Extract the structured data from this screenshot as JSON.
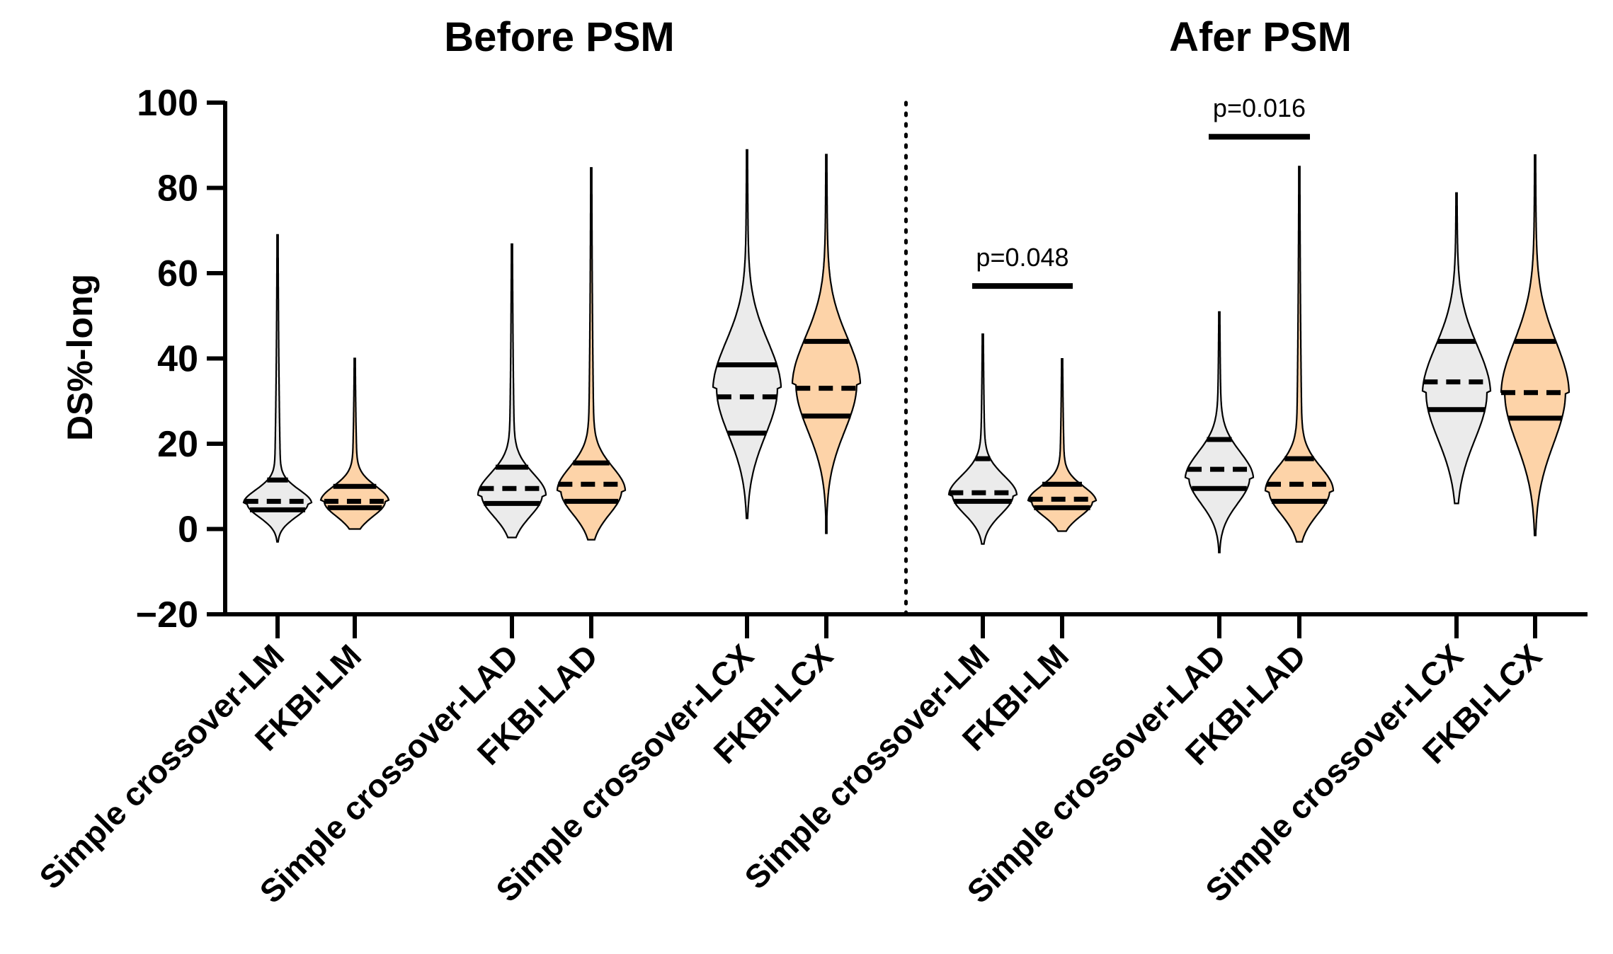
{
  "chart_data": {
    "type": "violin",
    "panels": [
      "Before PSM",
      "Afer PSM"
    ],
    "ylabel": "DS%-long",
    "ylim": [
      -20,
      100
    ],
    "yticks": [
      "100",
      "80",
      "60",
      "40",
      "20",
      "0",
      "−20"
    ],
    "yticks_values": [
      100,
      80,
      60,
      40,
      20,
      0,
      -20
    ],
    "categories": [
      "Simple crossover-LM",
      "FKBI-LM",
      "Simple crossover-LAD",
      "FKBI-LAD",
      "Simple crossover-LCX",
      "FKBI-LCX",
      "Simple crossover-LM",
      "FKBI-LM",
      "Simple crossover-LAD",
      "FKBI-LAD",
      "Simple crossover-LCX",
      "FKBI-LCX"
    ],
    "series": [
      {
        "name": "Simple crossover-LM",
        "panel": "Before PSM",
        "group": "Simple crossover",
        "min": -3,
        "max": 69,
        "q1": 4.5,
        "median": 6.5,
        "q3": 11.5,
        "mode": 6,
        "spread": 3.2
      },
      {
        "name": "FKBI-LM",
        "panel": "Before PSM",
        "group": "FKBI",
        "min": 0,
        "max": 40,
        "q1": 5,
        "median": 6.5,
        "q3": 10,
        "mode": 6.5,
        "spread": 3.5
      },
      {
        "name": "Simple crossover-LAD",
        "panel": "Before PSM",
        "group": "Simple crossover",
        "min": -2,
        "max": 67,
        "q1": 6,
        "median": 9.5,
        "q3": 14.5,
        "mode": 8,
        "spread": 5
      },
      {
        "name": "FKBI-LAD",
        "panel": "Before PSM",
        "group": "FKBI",
        "min": -2.5,
        "max": 85,
        "q1": 6.5,
        "median": 10.5,
        "q3": 15.5,
        "mode": 9,
        "spread": 5.5
      },
      {
        "name": "Simple crossover-LCX",
        "panel": "Before PSM",
        "group": "Simple crossover",
        "min": 2.5,
        "max": 89,
        "q1": 22.5,
        "median": 31,
        "q3": 38.5,
        "mode": 33,
        "spread": 11
      },
      {
        "name": "FKBI-LCX",
        "panel": "Before PSM",
        "group": "FKBI",
        "min": -1,
        "max": 88,
        "q1": 26.5,
        "median": 33,
        "q3": 44,
        "mode": 34,
        "spread": 11
      },
      {
        "name": "Simple crossover-LM",
        "panel": "Afer PSM",
        "group": "Simple crossover",
        "min": -3.5,
        "max": 46,
        "q1": 6.5,
        "median": 8.5,
        "q3": 16.5,
        "mode": 8,
        "spread": 4.5
      },
      {
        "name": "FKBI-LM",
        "panel": "Afer PSM",
        "group": "FKBI",
        "min": -0.5,
        "max": 40,
        "q1": 5,
        "median": 7,
        "q3": 10.5,
        "mode": 6.5,
        "spread": 3.5
      },
      {
        "name": "Simple crossover-LAD",
        "panel": "Afer PSM",
        "group": "Simple crossover",
        "min": -5.5,
        "max": 51,
        "q1": 9.5,
        "median": 14,
        "q3": 21,
        "mode": 12,
        "spread": 6
      },
      {
        "name": "FKBI-LAD",
        "panel": "Afer PSM",
        "group": "FKBI",
        "min": -3,
        "max": 85,
        "q1": 6.5,
        "median": 10.5,
        "q3": 16.5,
        "mode": 9,
        "spread": 5.5
      },
      {
        "name": "Simple crossover-LCX",
        "panel": "Afer PSM",
        "group": "Simple crossover",
        "min": 6,
        "max": 79,
        "q1": 28,
        "median": 34.5,
        "q3": 44,
        "mode": 32,
        "spread": 11
      },
      {
        "name": "FKBI-LCX",
        "panel": "Afer PSM",
        "group": "FKBI",
        "min": -1.5,
        "max": 88,
        "q1": 26,
        "median": 32,
        "q3": 44,
        "mode": 32,
        "spread": 12
      }
    ],
    "annotations": [
      {
        "text": "p=0.048",
        "between": [
          6,
          7
        ],
        "y": 57
      },
      {
        "text": "p=0.016",
        "between": [
          8,
          9
        ],
        "y": 92
      }
    ],
    "colors": {
      "Simple crossover": "#ebebeb",
      "FKBI": "#fdd3a8",
      "outline": "#000000"
    }
  }
}
